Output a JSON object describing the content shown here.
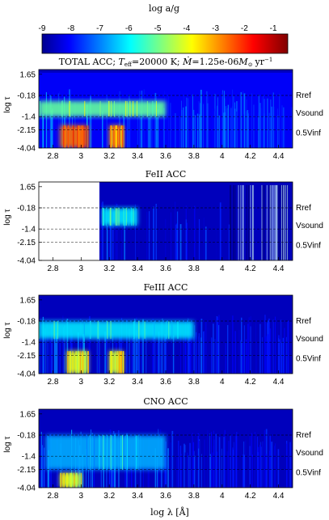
{
  "colorbar": {
    "title": "log a/g",
    "ticks": [
      "-9",
      "-8",
      "-7",
      "-6",
      "-5",
      "-4",
      "-3",
      "-2",
      "-1"
    ],
    "range": [
      -9,
      -0.5
    ],
    "colormap": "jet"
  },
  "x_axis": {
    "label": "log λ [Å]",
    "range": [
      2.7,
      4.5
    ],
    "ticks": [
      "2.8",
      "3",
      "3.2",
      "3.4",
      "3.6",
      "3.8",
      "4",
      "4.2",
      "4.4"
    ]
  },
  "y_axis": {
    "label": "log τ",
    "ticks": [
      "1.65",
      "-0.18",
      "-1.4",
      "-2.15",
      "-4.04"
    ]
  },
  "reference_lines": [
    "Rref",
    "Vsound",
    "0.5Vinf"
  ],
  "chart_data": [
    {
      "type": "heatmap",
      "title": "TOTAL ACC; T_eff=20000 K; Ṁ=1.25e-06 M☉ yr⁻¹",
      "title_parts": {
        "prefix": "TOTAL ACC; ",
        "teff": "T",
        "teff_sub": "eff",
        "teff_val": "=20000 K; ",
        "mdot": "Ṁ",
        "mdot_val": "=1.25e-06",
        "msun": "M",
        "msun_sub": "⊙",
        "unit": "yr",
        "unit_sup": "−1"
      },
      "xlabel": "",
      "ylabel": "log τ",
      "x_range": [
        2.7,
        4.5
      ],
      "y_range": [
        1.65,
        -4.04
      ],
      "hot_regions": [
        {
          "x": [
            2.85,
            3.05
          ],
          "y": [
            -1.9,
            -4.0
          ],
          "log_a_g": -2.5
        },
        {
          "x": [
            3.2,
            3.3
          ],
          "y": [
            -1.9,
            -4.0
          ],
          "log_a_g": -3
        },
        {
          "x": [
            2.7,
            3.6
          ],
          "y": [
            -0.5,
            -1.4
          ],
          "log_a_g": -5
        }
      ],
      "background_log_a_g": -8
    },
    {
      "type": "heatmap",
      "title": "FeII ACC",
      "xlabel": "",
      "ylabel": "log τ",
      "x_range": [
        2.7,
        4.5
      ],
      "y_range": [
        1.65,
        -4.04
      ],
      "data_start_x": 3.13,
      "hot_regions": [
        {
          "x": [
            3.15,
            3.4
          ],
          "y": [
            -0.18,
            -1.2
          ],
          "log_a_g": -6
        }
      ],
      "background_log_a_g": -8.5
    },
    {
      "type": "heatmap",
      "title": "FeIII ACC",
      "xlabel": "",
      "ylabel": "log τ",
      "x_range": [
        2.7,
        4.5
      ],
      "y_range": [
        1.65,
        -4.04
      ],
      "hot_regions": [
        {
          "x": [
            2.9,
            3.05
          ],
          "y": [
            -1.9,
            -4.0
          ],
          "log_a_g": -4
        },
        {
          "x": [
            3.2,
            3.3
          ],
          "y": [
            -1.9,
            -4.0
          ],
          "log_a_g": -4
        },
        {
          "x": [
            2.7,
            3.8
          ],
          "y": [
            -0.18,
            -1.2
          ],
          "log_a_g": -6
        }
      ],
      "background_log_a_g": -8.5
    },
    {
      "type": "heatmap",
      "title": "CNO ACC",
      "xlabel": "log λ [Å]",
      "ylabel": "log τ",
      "x_range": [
        2.7,
        4.5
      ],
      "y_range": [
        1.65,
        -4.04
      ],
      "hot_regions": [
        {
          "x": [
            2.85,
            3.0
          ],
          "y": [
            -2.5,
            -4.0
          ],
          "log_a_g": -4
        },
        {
          "x": [
            2.75,
            3.6
          ],
          "y": [
            -0.18,
            -2.15
          ],
          "log_a_g": -6.5
        }
      ],
      "background_log_a_g": -8.5
    }
  ]
}
